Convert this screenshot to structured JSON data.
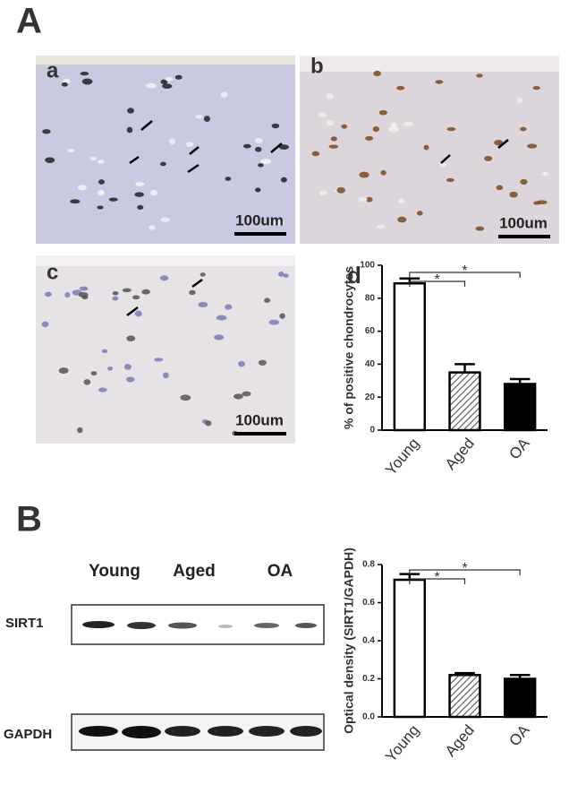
{
  "figure": {
    "panel_A": "A",
    "panel_B": "B"
  },
  "micrographs": [
    {
      "label": "a",
      "scale": "100um"
    },
    {
      "label": "b",
      "scale": "100um"
    },
    {
      "label": "c",
      "scale": "100um"
    }
  ],
  "blot": {
    "lanes": [
      "Young",
      "Aged",
      "OA"
    ],
    "proteins": [
      "SIRT1",
      "GAPDH"
    ]
  },
  "chart_data": [
    {
      "type": "bar",
      "panel_label": "d",
      "ylabel": "% of positive chondrocytes",
      "categories": [
        "Young",
        "Aged",
        "OA"
      ],
      "values": [
        89,
        35,
        28
      ],
      "errors": [
        3,
        5,
        3
      ],
      "colors": [
        "#ffffff",
        "#9a9a9a",
        "#000000"
      ],
      "hatch": [
        false,
        true,
        false
      ],
      "ylim": [
        0,
        100
      ],
      "yticks": [
        0,
        20,
        40,
        60,
        80,
        100
      ],
      "annotations": [
        "*",
        "*"
      ]
    },
    {
      "type": "bar",
      "ylabel": "Optical density (SIRT1/GAPDH)",
      "categories": [
        "Young",
        "Aged",
        "OA"
      ],
      "values": [
        0.72,
        0.22,
        0.2
      ],
      "errors": [
        0.03,
        0.01,
        0.02
      ],
      "colors": [
        "#ffffff",
        "#9a9a9a",
        "#000000"
      ],
      "hatch": [
        false,
        true,
        false
      ],
      "ylim": [
        0,
        0.8
      ],
      "yticks": [
        {
          "value": 0,
          "label": "0.0"
        },
        0.2,
        0.4,
        0.6,
        0.8
      ],
      "annotations": [
        "*",
        "*"
      ]
    }
  ]
}
